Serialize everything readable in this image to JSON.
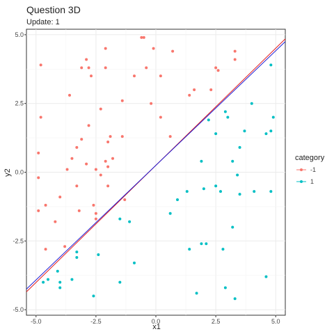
{
  "chart_data": {
    "type": "scatter",
    "title": "Question 3D",
    "subtitle": "Update: 1",
    "xlabel": "x1",
    "ylabel": "y2",
    "xlim": [
      -5.4,
      5.4
    ],
    "ylim": [
      -5.2,
      5.2
    ],
    "x_ticks": [
      -5.0,
      -2.5,
      0.0,
      2.5,
      5.0
    ],
    "x_tick_labels": [
      "-5.0",
      "-2.5",
      "0.0",
      "2.5",
      "5.0"
    ],
    "y_ticks": [
      -5.0,
      -2.5,
      0.0,
      2.5,
      5.0
    ],
    "y_tick_labels": [
      "-5.0",
      "-2.5",
      "0.0",
      "2.5",
      "5.0"
    ],
    "grid": true,
    "legend": {
      "title": "category",
      "position": "right",
      "entries": [
        {
          "label": "-1",
          "color": "#f8766d"
        },
        {
          "label": "1",
          "color": "#00bfc4"
        }
      ]
    },
    "series": [
      {
        "name": "-1",
        "color": "#f8766d",
        "points": [
          [
            -2.1,
            4.5
          ],
          [
            -0.6,
            4.9
          ],
          [
            -0.5,
            4.9
          ],
          [
            -0.1,
            4.5
          ],
          [
            0.7,
            4.4
          ],
          [
            3.3,
            4.4
          ],
          [
            3.3,
            4.1
          ],
          [
            -4.8,
            3.9
          ],
          [
            -3.1,
            3.8
          ],
          [
            -2.9,
            4.1
          ],
          [
            -2.8,
            3.8
          ],
          [
            -2.1,
            3.8
          ],
          [
            -2.7,
            3.5
          ],
          [
            -0.9,
            3.5
          ],
          [
            -0.4,
            3.8
          ],
          [
            0.2,
            3.5
          ],
          [
            2.5,
            3.8
          ],
          [
            2.6,
            3.7
          ],
          [
            -3.6,
            2.8
          ],
          [
            -1.4,
            2.6
          ],
          [
            -2.3,
            2.3
          ],
          [
            -0.2,
            2.5
          ],
          [
            1.4,
            2.8
          ],
          [
            1.6,
            3.0
          ],
          [
            2.3,
            3.0
          ],
          [
            -4.8,
            2.0
          ],
          [
            -2.8,
            1.7
          ],
          [
            0.2,
            2.0
          ],
          [
            -1.9,
            1.3
          ],
          [
            -1.4,
            1.3
          ],
          [
            -2.0,
            1.1
          ],
          [
            -3.3,
            0.9
          ],
          [
            -3.1,
            1.2
          ],
          [
            -3.5,
            0.5
          ],
          [
            -2.1,
            0.4
          ],
          [
            -1.8,
            0.5
          ],
          [
            0.6,
            1.3
          ],
          [
            -4.9,
            0.7
          ],
          [
            -3.7,
            0.1
          ],
          [
            -2.9,
            0.3
          ],
          [
            -2.5,
            0.1
          ],
          [
            -2.3,
            -0.1
          ],
          [
            -2.0,
            0.2
          ],
          [
            -4.9,
            -0.2
          ],
          [
            -3.3,
            -0.5
          ],
          [
            -2.0,
            -0.5
          ],
          [
            -4.6,
            -1.2
          ],
          [
            -3.2,
            -1.4
          ],
          [
            -1.3,
            -1.0
          ],
          [
            -4.0,
            -0.9
          ],
          [
            -4.9,
            -1.4
          ],
          [
            -2.6,
            -1.2
          ],
          [
            -2.5,
            -1.5
          ],
          [
            -4.2,
            -1.8
          ],
          [
            -2.5,
            -1.7
          ],
          [
            -3.8,
            -2.7
          ],
          [
            -4.6,
            -2.8
          ]
        ]
      },
      {
        "name": "1",
        "color": "#00bfc4",
        "points": [
          [
            4.8,
            3.9
          ],
          [
            4.0,
            2.5
          ],
          [
            2.9,
            2.2
          ],
          [
            4.9,
            2.0
          ],
          [
            3.0,
            2.0
          ],
          [
            2.2,
            1.9
          ],
          [
            3.7,
            1.5
          ],
          [
            4.8,
            1.5
          ],
          [
            2.5,
            1.4
          ],
          [
            4.6,
            1.4
          ],
          [
            3.5,
            0.9
          ],
          [
            3.2,
            0.4
          ],
          [
            1.9,
            0.4
          ],
          [
            3.4,
            -0.1
          ],
          [
            2.5,
            -0.5
          ],
          [
            2.0,
            -0.6
          ],
          [
            2.7,
            -0.7
          ],
          [
            4.1,
            -0.7
          ],
          [
            4.8,
            -0.7
          ],
          [
            1.3,
            -0.7
          ],
          [
            3.5,
            -0.8
          ],
          [
            0.9,
            -1.0
          ],
          [
            0.6,
            -1.5
          ],
          [
            -1.5,
            -1.7
          ],
          [
            -1.1,
            -1.8
          ],
          [
            3.2,
            -2.0
          ],
          [
            1.9,
            -2.6
          ],
          [
            2.1,
            -2.6
          ],
          [
            1.4,
            -2.8
          ],
          [
            2.8,
            -2.8
          ],
          [
            -2.4,
            -3.0
          ],
          [
            -3.3,
            -2.9
          ],
          [
            -3.3,
            -3.1
          ],
          [
            -0.9,
            -3.3
          ],
          [
            -4.1,
            -3.6
          ],
          [
            -3.5,
            -3.9
          ],
          [
            -4.5,
            -3.9
          ],
          [
            -4.7,
            -4.0
          ],
          [
            -4.0,
            -4.0
          ],
          [
            -4.0,
            -4.2
          ],
          [
            -1.5,
            -4.0
          ],
          [
            4.6,
            -3.8
          ],
          [
            2.9,
            -4.2
          ],
          [
            1.7,
            -4.4
          ],
          [
            -2.6,
            -4.5
          ],
          [
            3.3,
            -4.6
          ]
        ]
      }
    ],
    "lines": [
      {
        "name": "red",
        "color": "#e31a1c",
        "x": [
          -5.4,
          5.4
        ],
        "y": [
          -4.35,
          4.85
        ]
      },
      {
        "name": "blue",
        "color": "#1f1fd6",
        "x": [
          -5.4,
          5.4
        ],
        "y": [
          -4.25,
          4.75
        ]
      }
    ]
  }
}
